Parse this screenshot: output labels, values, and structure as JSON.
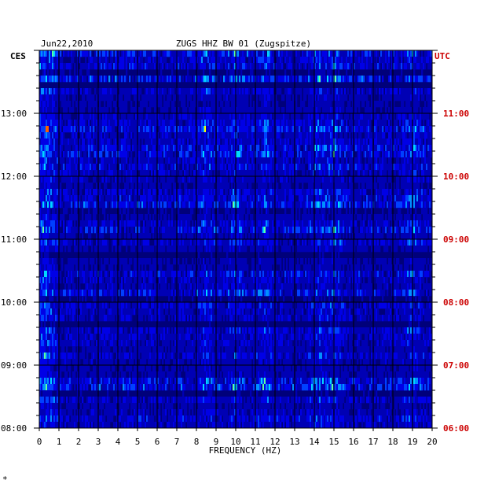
{
  "header": {
    "date": "Jun22,2010",
    "station": "ZUGS HHZ BW 01 (Zugspitze)",
    "left_tz": "CES",
    "right_tz": "UTC"
  },
  "footer_mark": "*",
  "colors": {
    "background": "#00007a",
    "spectrogram_low": "#0000c8",
    "left_axis_text": "#000000",
    "right_axis_text": "#cc0000",
    "gridline": "#000000"
  },
  "chart_data": {
    "type": "heatmap",
    "title": "ZUGS HHZ BW 01 (Zugspitze)",
    "xlabel": "FREQUENCY (HZ)",
    "xlim": [
      0,
      20
    ],
    "x_ticks": [
      "0",
      "1",
      "2",
      "3",
      "4",
      "5",
      "6",
      "7",
      "8",
      "9",
      "10",
      "11",
      "12",
      "13",
      "14",
      "15",
      "16",
      "17",
      "18",
      "19",
      "20"
    ],
    "y_left_ticks": [
      "13:00",
      "12:00",
      "11:00",
      "10:00",
      "09:00",
      "08:00"
    ],
    "y_right_ticks": [
      "11:00",
      "10:00",
      "09:00",
      "08:00",
      "07:00",
      "06:00"
    ],
    "y_left_top_label": "CES",
    "y_right_top_label": "UTC",
    "time_range_cest": [
      "08:00",
      "14:00"
    ],
    "rows": 60,
    "minutes_per_row": 6,
    "dominant_frequency_bands_hz": [
      0.3,
      8.5,
      10.0,
      11.5,
      14.2,
      15.0,
      19.0
    ]
  }
}
